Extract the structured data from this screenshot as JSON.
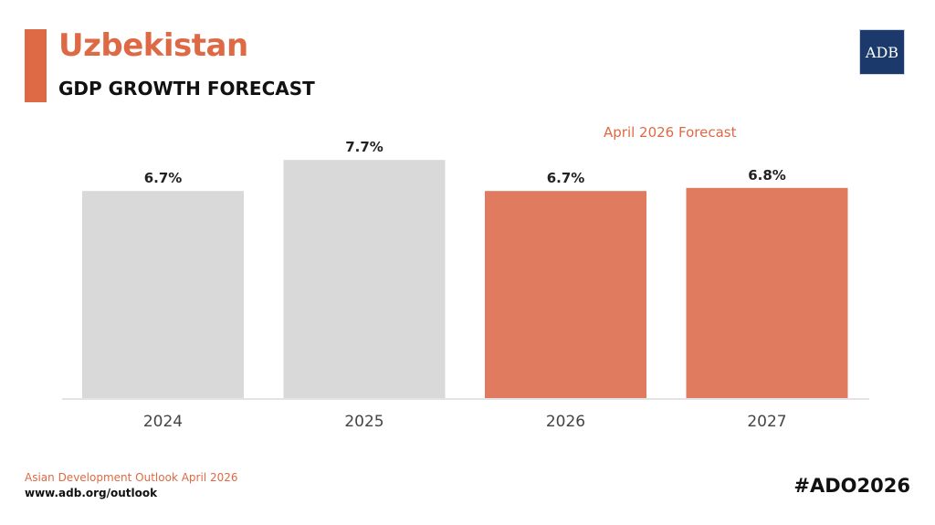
{
  "header": {
    "title": "Uzbekistan",
    "subtitle": "GDP GROWTH FORECAST",
    "logo_text": "ADB"
  },
  "forecast_label": "April 2026 Forecast",
  "footer": {
    "source": "Asian Development Outlook April 2026",
    "url": "www.adb.org/outlook",
    "hashtag": "#ADO2026"
  },
  "colors": {
    "accent": "#de6a45",
    "actual_bar": "#d9d9d9",
    "forecast_bar": "#e07b5f",
    "logo_bg": "#1b3a6b"
  },
  "chart_data": {
    "type": "bar",
    "title": "GDP GROWTH FORECAST",
    "xlabel": "",
    "ylabel": "",
    "categories": [
      "2024",
      "2025",
      "2026",
      "2027"
    ],
    "values": [
      6.7,
      7.7,
      6.7,
      6.8
    ],
    "value_labels": [
      "6.7%",
      "7.7%",
      "6.7%",
      "6.8%"
    ],
    "forecast": [
      false,
      false,
      true,
      true
    ],
    "ylim": [
      0,
      10
    ],
    "grid": false
  }
}
